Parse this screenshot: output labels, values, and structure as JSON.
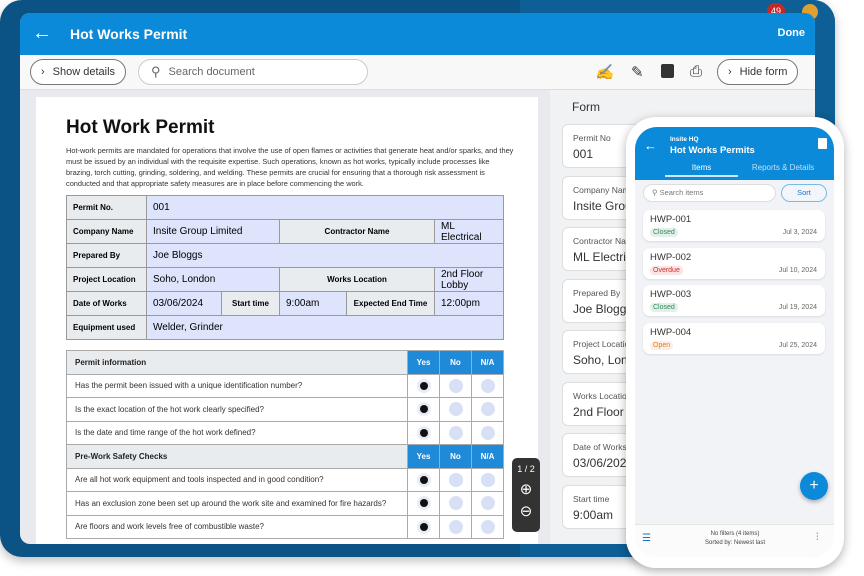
{
  "background": {
    "notification_count": "49"
  },
  "app": {
    "title": "Hot Works Permit",
    "done_label": "Done",
    "show_details_label": "Show details",
    "search_placeholder": "Search document",
    "hide_form_label": "Hide form",
    "toolbar_icons": [
      "signature-icon",
      "pencil-icon",
      "save-icon",
      "print-icon"
    ],
    "accent": "#0a8ad8"
  },
  "document": {
    "title": "Hot Work Permit",
    "intro": "Hot-work permits are mandated for operations that involve the use of open flames or activities that generate heat and/or sparks, and they must be issued by an individual with the requisite expertise. Such operations, known as hot works, typically include processes like brazing, torch cutting, grinding, soldering, and welding. These permits are crucial for ensuring that a thorough risk assessment is conducted and that appropriate safety measures are in place before commencing the work.",
    "info": {
      "permit_no_label": "Permit No.",
      "permit_no": "001",
      "company_label": "Company Name",
      "company": "Insite Group Limited",
      "contractor_label": "Contractor Name",
      "contractor": "ML Electrical",
      "prepared_label": "Prepared By",
      "prepared": "Joe Bloggs",
      "project_loc_label": "Project Location",
      "project_loc": "Soho, London",
      "works_loc_label": "Works Location",
      "works_loc": "2nd Floor Lobby",
      "date_label": "Date of Works",
      "date": "03/06/2024",
      "start_label": "Start time",
      "start": "9:00am",
      "end_label": "Expected End Time",
      "end": "12:00pm",
      "equip_label": "Equipment used",
      "equip": "Welder, Grinder"
    },
    "columns": [
      "Yes",
      "No",
      "N/A"
    ],
    "sections": [
      {
        "title": "Permit information",
        "questions": [
          {
            "q": "Has the permit been issued with a unique identification number?",
            "answer": "Yes"
          },
          {
            "q": "Is the exact location of the hot work clearly specified?",
            "answer": "Yes"
          },
          {
            "q": "Is the date and time range of the hot work defined?",
            "answer": "Yes"
          }
        ]
      },
      {
        "title": "Pre-Work Safety Checks",
        "questions": [
          {
            "q": "Are all hot work equipment and tools inspected and in good condition?",
            "answer": "Yes"
          },
          {
            "q": "Has an exclusion zone been set up around the work site and examined for fire hazards?",
            "answer": "Yes"
          },
          {
            "q": "Are floors and work levels free of combustible waste?",
            "answer": "Yes"
          }
        ]
      }
    ],
    "page_indicator": "1 / 2"
  },
  "form": {
    "title": "Form",
    "fields": [
      {
        "label": "Permit No",
        "value": "001"
      },
      {
        "label": "Company Name",
        "value": "Insite Group Limited"
      },
      {
        "label": "Contractor Name",
        "value": "ML Electrical"
      },
      {
        "label": "Prepared By",
        "value": "Joe Bloggs"
      },
      {
        "label": "Project Location",
        "value": "Soho, London"
      },
      {
        "label": "Works Location",
        "value": "2nd Floor Lobby"
      },
      {
        "label": "Date of Works",
        "value": "03/06/2024"
      },
      {
        "label": "Start time",
        "value": "9:00am"
      }
    ]
  },
  "phone": {
    "org": "Insite HQ",
    "title": "Hot Works Permits",
    "tabs": [
      "Items",
      "Reports & Details"
    ],
    "search_placeholder": "Search items",
    "sort_label": "Sort",
    "items": [
      {
        "id": "HWP-001",
        "status": "Closed",
        "date": "Jul 3, 2024"
      },
      {
        "id": "HWP-002",
        "status": "Overdue",
        "date": "Jul 10, 2024"
      },
      {
        "id": "HWP-003",
        "status": "Closed",
        "date": "Jul 19, 2024"
      },
      {
        "id": "HWP-004",
        "status": "Open",
        "date": "Jul 25, 2024"
      }
    ],
    "status_colors": {
      "Closed": "#2e8b57",
      "Overdue": "#d32f2f",
      "Open": "#e67e22"
    },
    "footer_line1": "No filters (4 items)",
    "footer_line2": "Sorted by: Newest last"
  }
}
